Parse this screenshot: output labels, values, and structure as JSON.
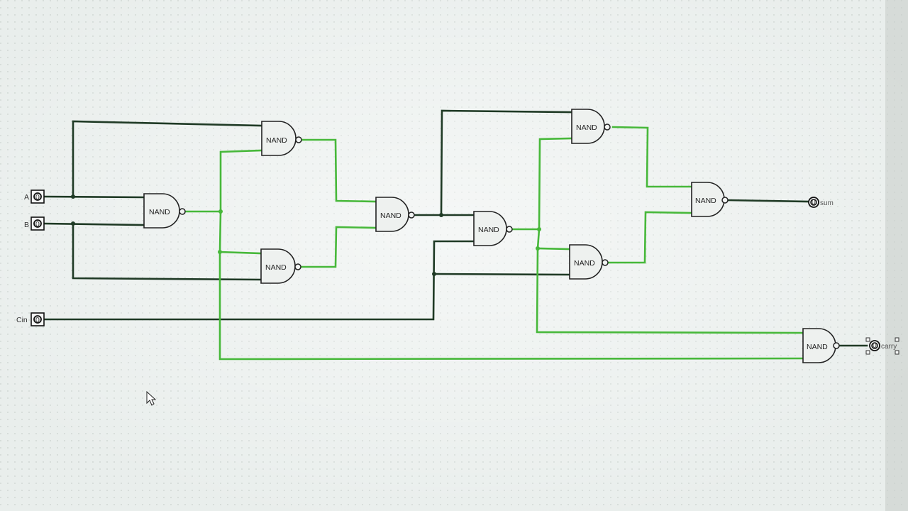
{
  "inputs": {
    "a": {
      "label": "A",
      "value": "0"
    },
    "b": {
      "label": "B",
      "value": "0"
    },
    "cin": {
      "label": "Cin",
      "value": "0"
    }
  },
  "outputs": {
    "sum": {
      "label": "sum",
      "value": "0"
    },
    "carry": {
      "label": "carry",
      "value": "0"
    }
  },
  "gates": {
    "g1": "NAND",
    "g2": "NAND",
    "g3": "NAND",
    "g4": "NAND",
    "g5": "NAND",
    "g6": "NAND",
    "g7": "NAND",
    "g8": "NAND",
    "g9": "NAND"
  },
  "colors": {
    "wire_low": "#1f3a25",
    "wire_high": "#47b83a"
  }
}
